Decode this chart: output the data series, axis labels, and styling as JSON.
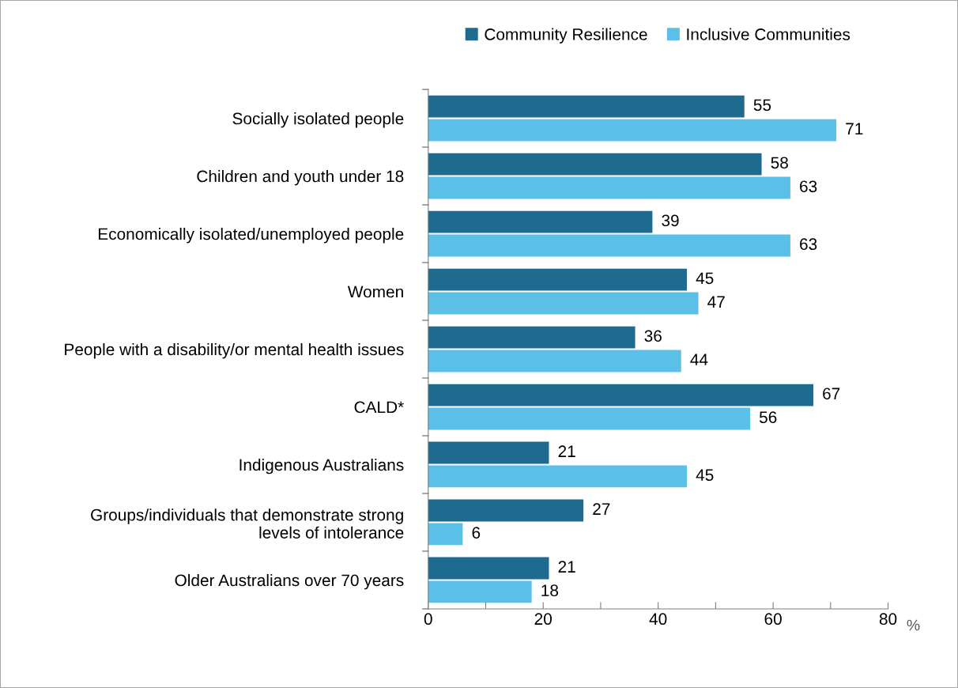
{
  "chart_data": {
    "type": "bar",
    "orientation": "horizontal",
    "xlabel": "%",
    "categories": [
      "Socially isolated people",
      "Children and youth under 18",
      "Economically isolated/unemployed people",
      "Women",
      "People with a disability/or mental health issues",
      "CALD*",
      "Indigenous Australians",
      "Groups/individuals that demonstrate strong\nlevels of intolerance",
      "Older Australians over 70 years"
    ],
    "series": [
      {
        "name": "Community Resilience",
        "color": "#1f6a8f",
        "values": [
          55,
          58,
          39,
          45,
          36,
          67,
          21,
          27,
          21
        ]
      },
      {
        "name": "Inclusive Communities",
        "color": "#5bc0e8",
        "values": [
          71,
          63,
          63,
          47,
          44,
          56,
          45,
          6,
          18
        ]
      }
    ],
    "xlim": [
      0,
      80
    ],
    "xticks": [
      0,
      {
        "value": 10,
        "label": null
      },
      20,
      {
        "value": 30,
        "label": null
      },
      40,
      {
        "value": 50,
        "label": null
      },
      60,
      {
        "value": 70,
        "label": null
      },
      80
    ],
    "data_labels": true,
    "grid": false,
    "legend": "top"
  }
}
